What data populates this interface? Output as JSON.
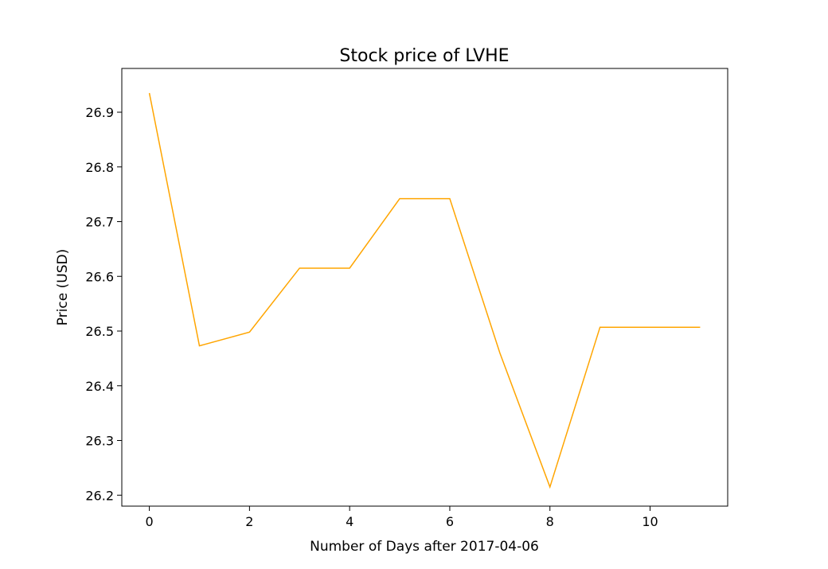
{
  "chart_data": {
    "type": "line",
    "title": "Stock price of LVHE",
    "xlabel": "Number of Days after 2017-04-06",
    "ylabel": "Price (USD)",
    "xlim": [
      -0.55,
      11.55
    ],
    "ylim": [
      26.18,
      26.98
    ],
    "xticks": [
      0,
      2,
      4,
      6,
      8,
      10
    ],
    "yticks": [
      26.2,
      26.3,
      26.4,
      26.5,
      26.6,
      26.7,
      26.8,
      26.9
    ],
    "grid": false,
    "series": [
      {
        "color": "#FFA500",
        "x": [
          0,
          1,
          2,
          3,
          4,
          5,
          6,
          7,
          8,
          9,
          10,
          11
        ],
        "y": [
          26.935,
          26.473,
          26.498,
          26.615,
          26.615,
          26.742,
          26.742,
          26.46,
          26.215,
          26.507,
          26.507,
          26.507
        ]
      }
    ]
  }
}
